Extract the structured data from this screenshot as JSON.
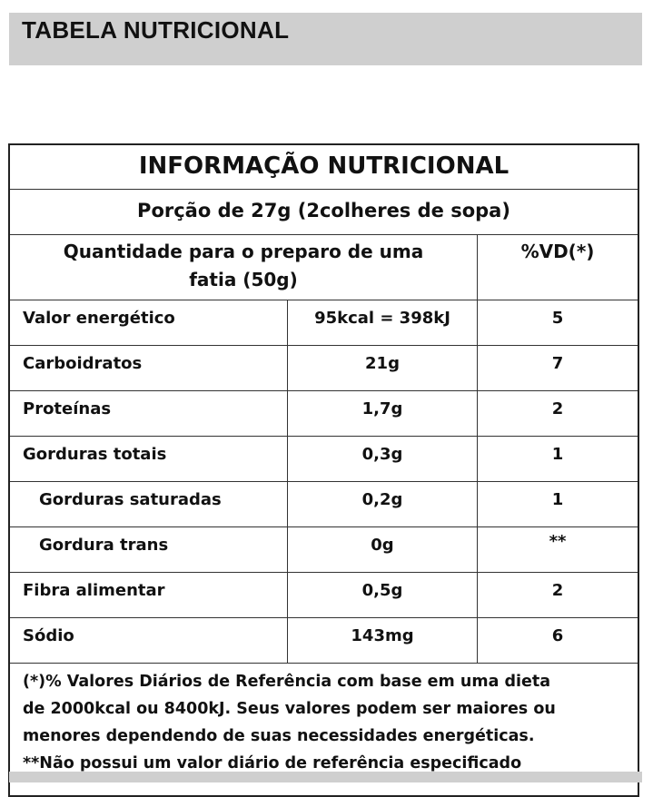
{
  "header": {
    "title": "TABELA NUTRICIONAL"
  },
  "table": {
    "title": "INFORMAÇÃO NUTRICIONAL",
    "portion": "Porção de 27g (2colheres de sopa)",
    "head_quantity_line1": "Quantidade para o preparo de uma",
    "head_quantity_line2": "fatia (50g)",
    "head_vd": "%VD(*)",
    "rows": [
      {
        "name": "Valor energético",
        "amount": "95kcal = 398kJ",
        "vd": "5"
      },
      {
        "name": "Carboidratos",
        "amount": "21g",
        "vd": "7"
      },
      {
        "name": "Proteínas",
        "amount": "1,7g",
        "vd": "2"
      },
      {
        "name": "Gorduras totais",
        "amount": "0,3g",
        "vd": "1"
      },
      {
        "name": "Gorduras saturadas",
        "amount": "0,2g",
        "vd": "1"
      },
      {
        "name": "Gordura trans",
        "amount": "0g",
        "vd": "**"
      },
      {
        "name": "Fibra alimentar",
        "amount": "0,5g",
        "vd": "2"
      },
      {
        "name": "Sódio",
        "amount": "143mg",
        "vd": "6"
      }
    ],
    "footnote": {
      "line1": "(*)% Valores Diários de Referência com base em uma dieta",
      "line2": "de 2000kcal ou 8400kJ. Seus valores podem ser maiores ou",
      "line3": "menores dependendo de suas necessidades energéticas.",
      "line4": "**Não possui um valor diário de referência especificado"
    }
  },
  "colors": {
    "header_bar": "#cfcfcf",
    "border": "#333333",
    "text": "#111111"
  }
}
